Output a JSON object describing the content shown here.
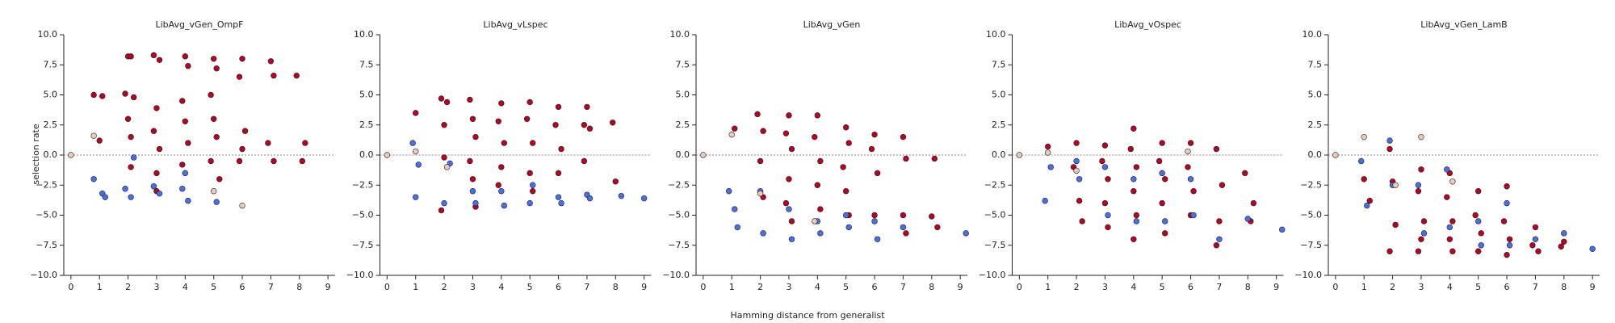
{
  "chart_data": [
    {
      "type": "scatter",
      "title": "LibAvg_vGen_OmpF",
      "ylabel": "selection rate",
      "xlim": [
        -0.25,
        9.25
      ],
      "xticks": [
        0,
        1,
        2,
        3,
        4,
        5,
        6,
        7,
        8,
        9
      ],
      "ylim": [
        -10,
        10
      ],
      "yticks": [
        {
          "value": -10,
          "label": "−10.0"
        },
        {
          "value": -7.5,
          "label": "−7.5"
        },
        {
          "value": -5,
          "label": "−5.0"
        },
        {
          "value": -2.5,
          "label": "−2.5"
        },
        {
          "value": 0,
          "label": "0.0"
        },
        {
          "value": 2.5,
          "label": "2.5"
        },
        {
          "value": 5,
          "label": "5.0"
        },
        {
          "value": 7.5,
          "label": "7.5"
        },
        {
          "value": 10,
          "label": "10.0"
        }
      ],
      "zero_line": 0,
      "series": [
        {
          "color": "#b40426",
          "x": [
            0.8,
            1.1,
            1.0,
            2.0,
            2.1,
            1.9,
            2.2,
            2.0,
            2.1,
            2.9,
            3.1,
            3.0,
            2.9,
            3.1,
            3.0,
            4.0,
            4.1,
            3.9,
            4.0,
            4.1,
            3.9,
            5.0,
            5.1,
            4.9,
            5.0,
            5.1,
            4.9,
            6.0,
            5.9,
            6.1,
            6.0,
            5.9,
            7.0,
            7.1,
            6.9,
            7.1,
            7.9,
            8.2,
            8.1,
            5.2,
            3.0,
            2.1
          ],
          "values": [
            5.0,
            4.9,
            1.2,
            8.2,
            8.2,
            5.1,
            4.8,
            3.0,
            1.5,
            8.3,
            7.9,
            3.9,
            2.0,
            0.5,
            -1.5,
            8.2,
            7.4,
            4.5,
            2.8,
            1.0,
            -0.8,
            8.0,
            7.2,
            5.0,
            3.0,
            1.5,
            -0.5,
            8.0,
            6.5,
            2.0,
            0.5,
            -0.5,
            7.8,
            6.6,
            1.0,
            -0.5,
            6.6,
            1.0,
            -0.5,
            -2.0,
            -3.0,
            -1.0
          ]
        },
        {
          "color": "#4a6fe3",
          "x": [
            0.8,
            1.1,
            1.2,
            1.9,
            2.1,
            2.9,
            3.1,
            3.9,
            4.1,
            5.1,
            4.0,
            2.2
          ],
          "values": [
            -2.0,
            -3.2,
            -3.5,
            -2.8,
            -3.5,
            -2.6,
            -3.2,
            -2.8,
            -3.8,
            -3.9,
            -1.5,
            -0.2
          ]
        },
        {
          "color": "#e8c9bc",
          "x": [
            0.8,
            0,
            6.0,
            5.0
          ],
          "values": [
            1.6,
            0,
            -4.2,
            -3.0
          ]
        }
      ]
    },
    {
      "type": "scatter",
      "title": "LibAvg_vLspec",
      "xlim": [
        -0.25,
        9.25
      ],
      "xticks": [
        0,
        1,
        2,
        3,
        4,
        5,
        6,
        7,
        8,
        9
      ],
      "ylim": [
        -10,
        10
      ],
      "yticks": [
        {
          "value": -10,
          "label": "−10.0"
        },
        {
          "value": -7.5,
          "label": "−7.5"
        },
        {
          "value": -5,
          "label": "−5.0"
        },
        {
          "value": -2.5,
          "label": "−2.5"
        },
        {
          "value": 0,
          "label": "0.0"
        },
        {
          "value": 2.5,
          "label": "2.5"
        },
        {
          "value": 5,
          "label": "5.0"
        },
        {
          "value": 7.5,
          "label": "7.5"
        },
        {
          "value": 10,
          "label": "10.0"
        }
      ],
      "zero_line": 0,
      "series": [
        {
          "color": "#b40426",
          "x": [
            1.0,
            1.9,
            2.1,
            2.0,
            2.9,
            3.0,
            3.1,
            2.9,
            3.0,
            3.1,
            4.0,
            3.9,
            4.1,
            4.0,
            3.9,
            5.0,
            4.9,
            5.1,
            5.0,
            5.1,
            6.0,
            5.9,
            6.1,
            6.0,
            7.0,
            6.9,
            7.1,
            6.9,
            7.9,
            8.0,
            1.9,
            2.0
          ],
          "values": [
            3.5,
            4.7,
            4.4,
            2.5,
            4.6,
            3.0,
            1.5,
            -0.5,
            -2.0,
            -4.3,
            4.3,
            2.8,
            1.0,
            -1.0,
            -2.5,
            4.4,
            3.0,
            1.0,
            -1.5,
            -3.0,
            4.0,
            2.5,
            0.5,
            -1.5,
            4.0,
            2.5,
            2.2,
            -0.5,
            2.7,
            -2.2,
            -4.6,
            -0.2
          ]
        },
        {
          "color": "#4a6fe3",
          "x": [
            0.9,
            1.0,
            1.1,
            2.0,
            2.2,
            3.0,
            3.1,
            4.0,
            4.1,
            5.0,
            5.1,
            6.0,
            6.1,
            7.0,
            7.1,
            9.0,
            8.2
          ],
          "values": [
            1.0,
            -3.5,
            -0.8,
            -4.0,
            -0.7,
            -3.0,
            -4.0,
            -3.0,
            -4.2,
            -4.0,
            -2.5,
            -3.5,
            -4.0,
            -3.3,
            -3.6,
            -3.6,
            -3.4
          ]
        },
        {
          "color": "#e8c9bc",
          "x": [
            0,
            1.0,
            2.1
          ],
          "values": [
            0,
            0.3,
            -1.0
          ]
        }
      ]
    },
    {
      "type": "scatter",
      "title": "LibAvg_vGen",
      "xlabel": "Hamming distance from generalist",
      "xlim": [
        -0.25,
        9.25
      ],
      "xticks": [
        0,
        1,
        2,
        3,
        4,
        5,
        6,
        7,
        8,
        9
      ],
      "ylim": [
        -10,
        10
      ],
      "yticks": [
        {
          "value": -10,
          "label": "−10.0"
        },
        {
          "value": -7.5,
          "label": "−7.5"
        },
        {
          "value": -5,
          "label": "−5.0"
        },
        {
          "value": -2.5,
          "label": "−2.5"
        },
        {
          "value": 0,
          "label": "0.0"
        },
        {
          "value": 2.5,
          "label": "2.5"
        },
        {
          "value": 5,
          "label": "5.0"
        },
        {
          "value": 7.5,
          "label": "7.5"
        },
        {
          "value": 10,
          "label": "10.0"
        }
      ],
      "zero_line": 0,
      "series": [
        {
          "color": "#b40426",
          "x": [
            1.1,
            1.9,
            2.1,
            2.0,
            2.1,
            3.0,
            2.9,
            3.1,
            3.0,
            2.9,
            3.1,
            4.0,
            3.9,
            4.1,
            4.0,
            4.1,
            5.0,
            5.1,
            4.9,
            5.0,
            5.1,
            6.0,
            5.9,
            6.1,
            6.0,
            7.0,
            7.1,
            7.0,
            7.1,
            8.1,
            8.0,
            8.2
          ],
          "values": [
            2.2,
            3.4,
            2.0,
            -0.5,
            -3.5,
            3.3,
            1.8,
            0.5,
            -2.0,
            -4.0,
            -5.5,
            3.3,
            1.5,
            -0.5,
            -2.5,
            -4.5,
            2.3,
            1.0,
            -1.0,
            -3.0,
            -5.0,
            1.7,
            0.5,
            -1.5,
            -5.0,
            1.5,
            -0.3,
            -5.0,
            -6.5,
            -0.3,
            -5.1,
            -6.0
          ]
        },
        {
          "color": "#4a6fe3",
          "x": [
            0.9,
            1.1,
            2.0,
            2.1,
            3.0,
            3.1,
            4.0,
            4.1,
            5.0,
            5.1,
            6.0,
            6.1,
            7.0,
            9.2,
            1.2
          ],
          "values": [
            -3.0,
            -4.5,
            -3.0,
            -6.5,
            -4.5,
            -7.0,
            -5.5,
            -6.5,
            -5.0,
            -6.0,
            -5.5,
            -7.0,
            -6.0,
            -6.5,
            -6.0
          ]
        },
        {
          "color": "#e8c9bc",
          "x": [
            0,
            1.0,
            2.0,
            3.9
          ],
          "values": [
            0,
            1.7,
            -3.2,
            -5.5
          ]
        }
      ]
    },
    {
      "type": "scatter",
      "title": "LibAvg_vOspec",
      "xlim": [
        -0.25,
        9.25
      ],
      "xticks": [
        0,
        1,
        2,
        3,
        4,
        5,
        6,
        7,
        8,
        9
      ],
      "ylim": [
        -10,
        10
      ],
      "yticks": [
        {
          "value": -10,
          "label": "−10.0"
        },
        {
          "value": -7.5,
          "label": "−7.5"
        },
        {
          "value": -5,
          "label": "−5.0"
        },
        {
          "value": -2.5,
          "label": "−2.5"
        },
        {
          "value": 0,
          "label": "0.0"
        },
        {
          "value": 2.5,
          "label": "2.5"
        },
        {
          "value": 5,
          "label": "5.0"
        },
        {
          "value": 7.5,
          "label": "7.5"
        },
        {
          "value": 10,
          "label": "10.0"
        }
      ],
      "zero_line": 0,
      "series": [
        {
          "color": "#b40426",
          "x": [
            1.0,
            2.0,
            1.9,
            2.1,
            2.2,
            3.0,
            2.9,
            3.1,
            3.0,
            3.1,
            4.0,
            3.9,
            4.1,
            4.0,
            4.1,
            4.0,
            5.0,
            4.9,
            5.1,
            5.0,
            5.1,
            6.0,
            5.9,
            6.1,
            6.0,
            6.9,
            7.1,
            7.0,
            6.9,
            7.9,
            8.1,
            8.2
          ],
          "values": [
            0.7,
            1.0,
            -1.0,
            -3.8,
            -5.5,
            0.8,
            -0.5,
            -2.0,
            -4.0,
            -6.0,
            2.2,
            0.5,
            -1.0,
            -3.0,
            -5.0,
            -7.0,
            1.0,
            -0.5,
            -2.0,
            -4.0,
            -6.5,
            1.0,
            -1.0,
            -3.0,
            -5.0,
            0.5,
            -2.5,
            -5.5,
            -7.5,
            -1.5,
            -5.5,
            -4.0
          ]
        },
        {
          "color": "#4a6fe3",
          "x": [
            0.9,
            1.1,
            2.0,
            2.1,
            3.0,
            3.1,
            4.0,
            4.1,
            5.0,
            5.1,
            6.0,
            6.1,
            7.0,
            9.2,
            8.0
          ],
          "values": [
            -3.8,
            -1.0,
            -0.5,
            -2.0,
            -1.0,
            -5.0,
            -2.0,
            -5.5,
            -1.5,
            -5.5,
            -2.0,
            -5.0,
            -7.0,
            -6.2,
            -5.3
          ]
        },
        {
          "color": "#e8c9bc",
          "x": [
            0,
            1.0,
            2.0,
            5.9
          ],
          "values": [
            0,
            0.2,
            -1.3,
            0.3
          ]
        }
      ]
    },
    {
      "type": "scatter",
      "title": "LibAvg_vGen_LamB",
      "xlim": [
        -0.25,
        9.25
      ],
      "xticks": [
        0,
        1,
        2,
        3,
        4,
        5,
        6,
        7,
        8,
        9
      ],
      "ylim": [
        -10,
        10
      ],
      "yticks": [
        {
          "value": -10,
          "label": "−10.0"
        },
        {
          "value": -7.5,
          "label": "−7.5"
        },
        {
          "value": -5,
          "label": "−5.0"
        },
        {
          "value": -2.5,
          "label": "−2.5"
        },
        {
          "value": 0,
          "label": "0.0"
        },
        {
          "value": 2.5,
          "label": "2.5"
        },
        {
          "value": 5,
          "label": "5.0"
        },
        {
          "value": 7.5,
          "label": "7.5"
        },
        {
          "value": 10,
          "label": "10.0"
        }
      ],
      "zero_line": 0,
      "series": [
        {
          "color": "#b40426",
          "x": [
            1.0,
            1.2,
            1.9,
            2.0,
            2.1,
            1.9,
            3.0,
            2.9,
            3.1,
            3.0,
            2.9,
            4.0,
            3.9,
            4.1,
            4.0,
            4.1,
            5.0,
            4.9,
            5.1,
            5.0,
            6.0,
            5.9,
            6.1,
            6.0,
            7.0,
            6.9,
            7.1,
            8.0,
            7.9
          ],
          "values": [
            -2.0,
            -3.8,
            0.5,
            -2.2,
            -5.8,
            -8.0,
            -1.2,
            -3.0,
            -5.5,
            -7.0,
            -8.0,
            -1.5,
            -3.5,
            -5.5,
            -7.0,
            -8.0,
            -3.0,
            -5.0,
            -6.5,
            -8.0,
            -2.6,
            -5.5,
            -7.0,
            -8.3,
            -6.0,
            -7.5,
            -8.0,
            -7.2,
            -7.6
          ]
        },
        {
          "color": "#4a6fe3",
          "x": [
            0.9,
            1.1,
            1.9,
            2.0,
            2.9,
            3.1,
            3.9,
            4.0,
            5.0,
            5.1,
            6.0,
            6.1,
            7.0,
            8.0,
            9.0
          ],
          "values": [
            -0.5,
            -4.2,
            1.2,
            -2.5,
            -2.5,
            -6.5,
            -1.2,
            -6.0,
            -5.5,
            -7.5,
            -4.0,
            -7.5,
            -7.0,
            -6.5,
            -7.8
          ]
        },
        {
          "color": "#e8c9bc",
          "x": [
            0,
            1.0,
            3.0,
            2.1,
            4.1
          ],
          "values": [
            0,
            1.5,
            1.5,
            -2.5,
            -2.2
          ]
        }
      ]
    }
  ]
}
